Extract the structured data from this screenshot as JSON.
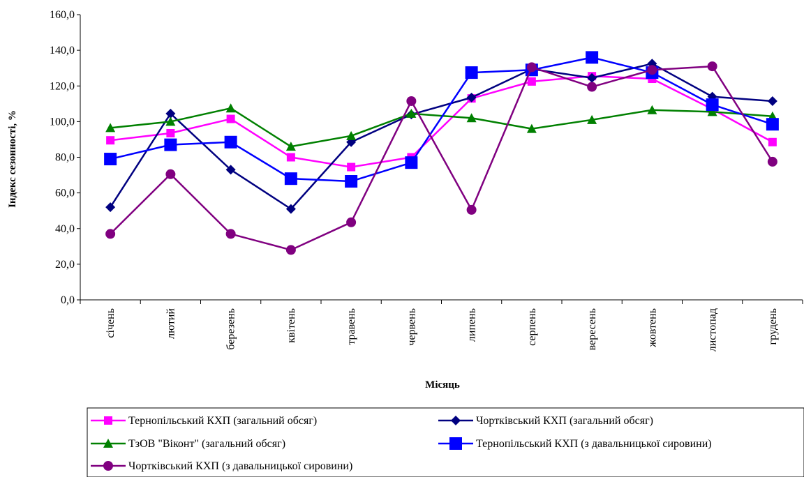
{
  "chart_data": {
    "type": "line",
    "xlabel": "Місяць",
    "ylabel": "Індекс сезонності, %",
    "ylim": [
      0,
      160
    ],
    "ytick_step": 20,
    "ytick_labels": [
      "0,0",
      "20,0",
      "40,0",
      "60,0",
      "80,0",
      "100,0",
      "120,0",
      "140,0",
      "160,0"
    ],
    "grid": false,
    "legend_position": "bottom",
    "categories": [
      "січень",
      "лютий",
      "березень",
      "квітень",
      "травень",
      "червень",
      "липень",
      "серпень",
      "вересень",
      "жовтень",
      "листопад",
      "грудень"
    ],
    "series": [
      {
        "name": "Тернопільський КХП (загальний обсяг)",
        "color": "#ff00ff",
        "marker": "square-small",
        "values": [
          89.5,
          93.5,
          101.5,
          80.0,
          74.5,
          80.0,
          113.0,
          122.5,
          125.5,
          124.0,
          107.0,
          88.5
        ]
      },
      {
        "name": "Чортківський КХП (загальний обсяг)",
        "color": "#000080",
        "marker": "diamond",
        "values": [
          52.0,
          104.5,
          73.0,
          51.0,
          88.5,
          104.0,
          113.5,
          129.5,
          124.5,
          132.5,
          114.0,
          111.5
        ]
      },
      {
        "name": "ТзОВ \"Віконт\" (загальний обсяг)",
        "color": "#008000",
        "marker": "triangle",
        "values": [
          96.5,
          100.0,
          107.5,
          86.0,
          92.0,
          104.5,
          102.0,
          96.0,
          101.0,
          106.5,
          105.5,
          103.0
        ]
      },
      {
        "name": "Тернопільський КХП (з давальницької сировини)",
        "color": "#0000ff",
        "marker": "square-large",
        "values": [
          79.0,
          87.0,
          88.5,
          68.0,
          66.5,
          77.0,
          127.5,
          129.0,
          136.0,
          127.5,
          109.5,
          98.5
        ]
      },
      {
        "name": "Чортківський КХП (з давальницької сировини)",
        "color": "#800080",
        "marker": "circle",
        "values": [
          37.0,
          70.5,
          37.0,
          28.0,
          43.5,
          111.5,
          50.5,
          130.5,
          119.5,
          129.0,
          131.0,
          77.5
        ]
      }
    ]
  }
}
